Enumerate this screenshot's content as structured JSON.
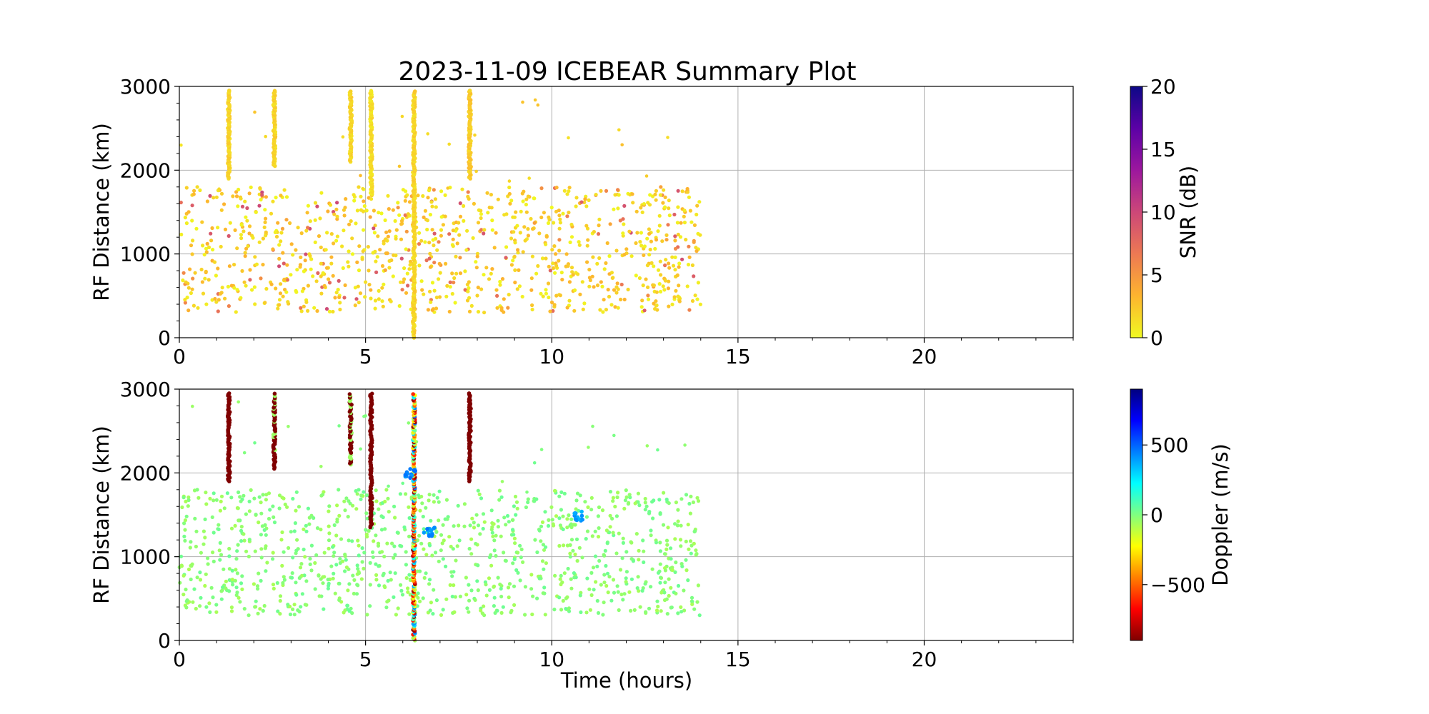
{
  "chart_data": [
    {
      "type": "scatter",
      "title": "2023-11-09 ICEBEAR Summary Plot",
      "xlabel": "",
      "ylabel": "RF Distance (km)",
      "xlim": [
        0,
        24
      ],
      "ylim": [
        0,
        3000
      ],
      "xticks": [
        "0",
        "5",
        "10",
        "15",
        "20"
      ],
      "yticks": [
        "0",
        "1000",
        "2000",
        "3000"
      ],
      "grid": true,
      "color_encoding": "SNR (dB)",
      "colorbar": {
        "label": "SNR (dB)",
        "range": [
          0,
          20
        ],
        "ticks": [
          "0",
          "5",
          "10",
          "15",
          "20"
        ],
        "colormap": "plasma_r",
        "colors": [
          "#f0f921",
          "#fdb42f",
          "#ed7953",
          "#cc4778",
          "#9c179e",
          "#5c01a6",
          "#0d0887"
        ]
      },
      "scatter_region": {
        "x_range": [
          0,
          14
        ],
        "y_range": [
          200,
          1900
        ],
        "typical_value": 2
      },
      "streaks": [
        {
          "x": 1.33,
          "y_range": [
            1900,
            2950
          ],
          "value": 1
        },
        {
          "x": 2.55,
          "y_range": [
            2050,
            2950
          ],
          "value": 1
        },
        {
          "x": 4.6,
          "y_range": [
            2100,
            2950
          ],
          "value": 1
        },
        {
          "x": 5.15,
          "y_range": [
            1700,
            2950
          ],
          "value": 0.5
        },
        {
          "x": 6.3,
          "y_range": [
            0,
            2950
          ],
          "value": 1
        },
        {
          "x": 7.8,
          "y_range": [
            1900,
            2950
          ],
          "value": 1.5
        }
      ]
    },
    {
      "type": "scatter",
      "title": "",
      "xlabel": "Time (hours)",
      "ylabel": "RF Distance (km)",
      "xlim": [
        0,
        24
      ],
      "ylim": [
        0,
        3000
      ],
      "xticks": [
        "0",
        "5",
        "10",
        "15",
        "20"
      ],
      "yticks": [
        "0",
        "1000",
        "2000",
        "3000"
      ],
      "grid": true,
      "color_encoding": "Doppler (m/s)",
      "colorbar": {
        "label": "Doppler (m/s)",
        "range": [
          -900,
          900
        ],
        "ticks": [
          "−500",
          "0",
          "500"
        ],
        "tick_values": [
          -500,
          0,
          500
        ],
        "colormap": "jet_r",
        "colors": [
          "#7f0000",
          "#ff0000",
          "#ff7f00",
          "#ffff00",
          "#80ff80",
          "#00ffff",
          "#007fff",
          "#0000ff",
          "#00007f"
        ]
      },
      "scatter_region": {
        "x_range": [
          0,
          14
        ],
        "y_range": [
          200,
          1900
        ],
        "typical_value": -30
      },
      "streaks": [
        {
          "x": 1.33,
          "y_range": [
            1900,
            2950
          ],
          "value": -900
        },
        {
          "x": 2.55,
          "y_range": [
            2050,
            2950
          ],
          "value": -900
        },
        {
          "x": 4.6,
          "y_range": [
            2100,
            2950
          ],
          "value": -900
        },
        {
          "x": 5.15,
          "y_range": [
            1350,
            2950
          ],
          "value": -900
        },
        {
          "x": 6.3,
          "y_range": [
            0,
            2950
          ],
          "value": -700
        },
        {
          "x": 7.8,
          "y_range": [
            1900,
            2950
          ],
          "value": -900
        }
      ],
      "clusters": [
        {
          "x": 6.2,
          "y": 2000,
          "value": 450
        },
        {
          "x": 6.7,
          "y": 1300,
          "value": 420
        },
        {
          "x": 10.7,
          "y": 1480,
          "value": 380
        }
      ]
    }
  ]
}
